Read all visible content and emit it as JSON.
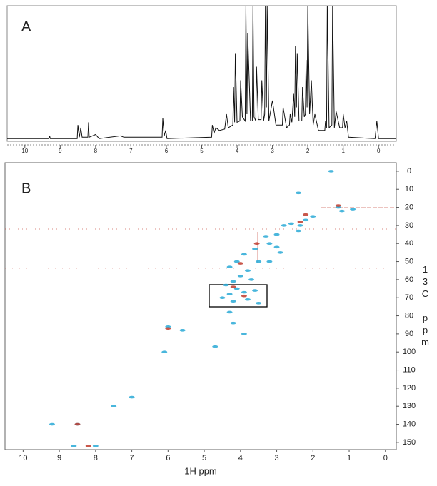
{
  "chart_data": [
    {
      "type": "line",
      "title": "A",
      "x": [
        10.5,
        9.32,
        9.3,
        9.28,
        8.52,
        8.5,
        8.46,
        8.42,
        8.38,
        8.22,
        8.2,
        8.18,
        8.0,
        7.9,
        7.3,
        7.2,
        6.12,
        6.1,
        6.06,
        6.02,
        5.98,
        4.72,
        4.7,
        4.65,
        4.6,
        4.5,
        4.35,
        4.3,
        4.25,
        4.12,
        4.1,
        4.07,
        4.05,
        4.0,
        3.92,
        3.9,
        3.85,
        3.77,
        3.75,
        3.72,
        3.7,
        3.62,
        3.57,
        3.55,
        3.52,
        3.47,
        3.45,
        3.4,
        3.32,
        3.3,
        3.25,
        3.22,
        3.2,
        3.17,
        3.15,
        3.1,
        3.0,
        2.9,
        2.72,
        2.7,
        2.6,
        2.52,
        2.5,
        2.45,
        2.4,
        2.37,
        2.35,
        2.32,
        2.3,
        2.25,
        2.17,
        2.15,
        2.1,
        2.07,
        2.05,
        2.02,
        2.0,
        1.95,
        1.9,
        1.85,
        1.8,
        1.7,
        1.52,
        1.5,
        1.47,
        1.45,
        1.4,
        1.32,
        1.3,
        1.25,
        1.2,
        1.1,
        1.02,
        1.0,
        0.95,
        0.9,
        0.85,
        0.1,
        0.05,
        0.0,
        -0.5
      ],
      "values": [
        2,
        2,
        4,
        2,
        2,
        12,
        3,
        10,
        3,
        3,
        14,
        3,
        5,
        2,
        4,
        3,
        3,
        17,
        4,
        8,
        2,
        3,
        12,
        6,
        10,
        8,
        9,
        20,
        10,
        12,
        40,
        14,
        65,
        14,
        15,
        45,
        18,
        15,
        100,
        20,
        80,
        15,
        15,
        100,
        18,
        15,
        55,
        16,
        16,
        45,
        15,
        20,
        100,
        25,
        100,
        15,
        30,
        12,
        12,
        25,
        10,
        12,
        20,
        14,
        35,
        18,
        70,
        25,
        65,
        15,
        15,
        40,
        18,
        20,
        60,
        25,
        100,
        20,
        45,
        12,
        20,
        8,
        8,
        15,
        10,
        100,
        10,
        12,
        100,
        10,
        22,
        10,
        10,
        20,
        10,
        15,
        3,
        2,
        15,
        2,
        2
      ],
      "color": "#111111",
      "xlim": [
        10.5,
        -0.5
      ],
      "ylim": [
        0,
        100
      ],
      "xticks": [
        10,
        9,
        8,
        7,
        6,
        5,
        4,
        3,
        2,
        1,
        0
      ]
    },
    {
      "type": "scatter",
      "title": "B",
      "xlabel": "1H ppm",
      "ylabel": "13C ppm",
      "series": [
        {
          "color": "#29a9d6",
          "x": [
            1.3,
            1.2,
            0.9,
            2.0,
            2.2,
            2.35,
            2.4,
            2.6,
            2.8,
            3.0,
            3.3,
            3.2,
            3.0,
            2.9,
            3.6,
            3.9,
            3.5,
            3.2,
            4.1,
            4.3,
            3.8,
            4.0,
            4.2,
            3.7,
            4.4,
            4.1,
            4.3,
            3.9,
            3.6,
            4.5,
            4.2,
            3.8,
            3.5,
            4.3,
            4.2,
            6.0,
            5.6,
            4.7,
            6.1,
            7.0,
            7.5,
            8.5,
            9.2,
            8.0,
            8.6,
            1.5,
            3.9,
            2.4
          ],
          "values": [
            20,
            22,
            21,
            25,
            27,
            30,
            33,
            29,
            30,
            35,
            36,
            40,
            42,
            45,
            43,
            46,
            50,
            50,
            50,
            53,
            55,
            58,
            61,
            60,
            63,
            65,
            68,
            67,
            66,
            70,
            72,
            71,
            73,
            78,
            84,
            86,
            88,
            97,
            100,
            125,
            130,
            140,
            140,
            152,
            152,
            0,
            90,
            12
          ]
        },
        {
          "color": "#c0392b",
          "x": [
            2.35,
            3.55,
            1.3,
            4.0,
            4.2,
            3.9,
            2.2,
            8.2,
            6.0,
            8.5
          ],
          "values": [
            28,
            40,
            19,
            51,
            64,
            69,
            24,
            152,
            87,
            140
          ]
        }
      ],
      "xlim": [
        10.5,
        -0.3
      ],
      "ylim": [
        154,
        -4.7
      ],
      "xticks": [
        10,
        9,
        8,
        7,
        6,
        5,
        4,
        3,
        2,
        1,
        0
      ],
      "yticks": [
        0,
        10,
        20,
        30,
        40,
        50,
        60,
        70,
        80,
        90,
        100,
        110,
        120,
        130,
        140,
        150
      ]
    }
  ]
}
